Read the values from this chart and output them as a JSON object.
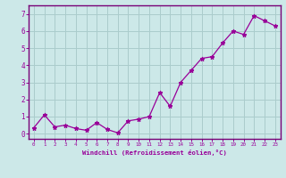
{
  "x": [
    0,
    1,
    2,
    3,
    4,
    5,
    6,
    7,
    8,
    9,
    10,
    11,
    12,
    13,
    14,
    15,
    16,
    17,
    18,
    19,
    20,
    21,
    22,
    23
  ],
  "y": [
    0.35,
    1.1,
    0.4,
    0.5,
    0.3,
    0.2,
    0.65,
    0.25,
    0.05,
    0.75,
    0.85,
    1.0,
    2.4,
    1.6,
    3.0,
    3.7,
    4.4,
    4.5,
    5.3,
    6.0,
    5.8,
    6.9,
    6.6,
    6.3
  ],
  "line_color": "#990099",
  "marker": "*",
  "xlabel": "Windchill (Refroidissement éolien,°C)",
  "xlim": [
    -0.5,
    23.5
  ],
  "ylim": [
    -0.3,
    7.5
  ],
  "yticks": [
    0,
    1,
    2,
    3,
    4,
    5,
    6,
    7
  ],
  "xticks": [
    0,
    1,
    2,
    3,
    4,
    5,
    6,
    7,
    8,
    9,
    10,
    11,
    12,
    13,
    14,
    15,
    16,
    17,
    18,
    19,
    20,
    21,
    22,
    23
  ],
  "bg_color": "#cce8e8",
  "grid_color": "#aacccc",
  "spine_color": "#770077",
  "tick_color": "#990099",
  "label_color": "#990099"
}
